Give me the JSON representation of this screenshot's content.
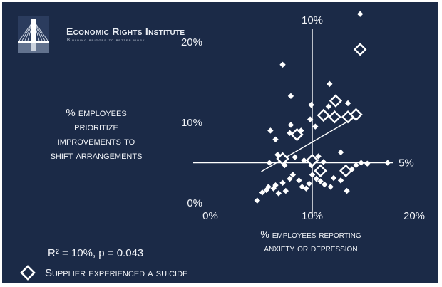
{
  "header": {
    "org_name": "Economic Rights Institute",
    "tagline": "Building bridges to better work"
  },
  "chart_data": {
    "type": "scatter",
    "xlabel": "% employees reporting\nanxiety or depression",
    "ylabel": "% employees\nprioritize\nimprovements to\nshift arrangements",
    "xlim": [
      0,
      0.2
    ],
    "ylim": [
      0,
      0.24
    ],
    "x_ticks": [
      "0%",
      "10%",
      "20%"
    ],
    "y_ticks": [
      "0%",
      "10%",
      "20%"
    ],
    "reference_lines": {
      "vertical": {
        "x": 0.1,
        "label": "10%"
      },
      "horizontal": {
        "y": 0.05,
        "label": "5%"
      }
    },
    "regression": {
      "x": [
        0.05,
        0.148
      ],
      "y": [
        0.039,
        0.111
      ]
    },
    "stats_text": "R² = 10%, p = 0.043",
    "legend_label": "Supplier experienced a suicide",
    "marker_colors": {
      "line": "#ffffff",
      "background": "#1b2a47"
    },
    "series": [
      {
        "marker": "filled-diamond",
        "points": [
          [
            0.046,
            0.003
          ],
          [
            0.051,
            0.013
          ],
          [
            0.055,
            0.016
          ],
          [
            0.057,
            0.02
          ],
          [
            0.062,
            0.018
          ],
          [
            0.064,
            0.022
          ],
          [
            0.067,
            0.012
          ],
          [
            0.071,
            0.025
          ],
          [
            0.074,
            0.015
          ],
          [
            0.078,
            0.03
          ],
          [
            0.081,
            0.035
          ],
          [
            0.087,
            0.028
          ],
          [
            0.09,
            0.02
          ],
          [
            0.094,
            0.018
          ],
          [
            0.097,
            0.024
          ],
          [
            0.1,
            0.035
          ],
          [
            0.104,
            0.03
          ],
          [
            0.108,
            0.027
          ],
          [
            0.112,
            0.023
          ],
          [
            0.118,
            0.02
          ],
          [
            0.121,
            0.031
          ],
          [
            0.128,
            0.028
          ],
          [
            0.134,
            0.015
          ],
          [
            0.139,
            0.042
          ],
          [
            0.058,
            0.05
          ],
          [
            0.066,
            0.06
          ],
          [
            0.073,
            0.047
          ],
          [
            0.083,
            0.057
          ],
          [
            0.092,
            0.053
          ],
          [
            0.099,
            0.047
          ],
          [
            0.106,
            0.058
          ],
          [
            0.111,
            0.051
          ],
          [
            0.128,
            0.063
          ],
          [
            0.143,
            0.047
          ],
          [
            0.154,
            0.049
          ],
          [
            0.059,
            0.09
          ],
          [
            0.064,
            0.079
          ],
          [
            0.078,
            0.087
          ],
          [
            0.079,
            0.097
          ],
          [
            0.089,
            0.09
          ],
          [
            0.103,
            0.095
          ],
          [
            0.099,
            0.122
          ],
          [
            0.116,
            0.12
          ],
          [
            0.117,
            0.148
          ],
          [
            0.071,
            0.172
          ],
          [
            0.079,
            0.133
          ],
          [
            0.098,
            0.104
          ],
          [
            0.135,
            0.124
          ],
          [
            0.148,
            0.05
          ],
          [
            0.147,
            0.235
          ],
          [
            0.174,
            0.05
          ]
        ]
      },
      {
        "name": "Supplier experienced a suicide",
        "marker": "open-diamond",
        "points": [
          [
            0.071,
            0.055
          ],
          [
            0.085,
            0.085
          ],
          [
            0.1,
            0.053
          ],
          [
            0.108,
            0.04
          ],
          [
            0.111,
            0.109
          ],
          [
            0.123,
            0.127
          ],
          [
            0.122,
            0.107
          ],
          [
            0.135,
            0.107
          ],
          [
            0.143,
            0.11
          ],
          [
            0.147,
            0.191
          ],
          [
            0.133,
            0.04
          ]
        ]
      }
    ]
  }
}
